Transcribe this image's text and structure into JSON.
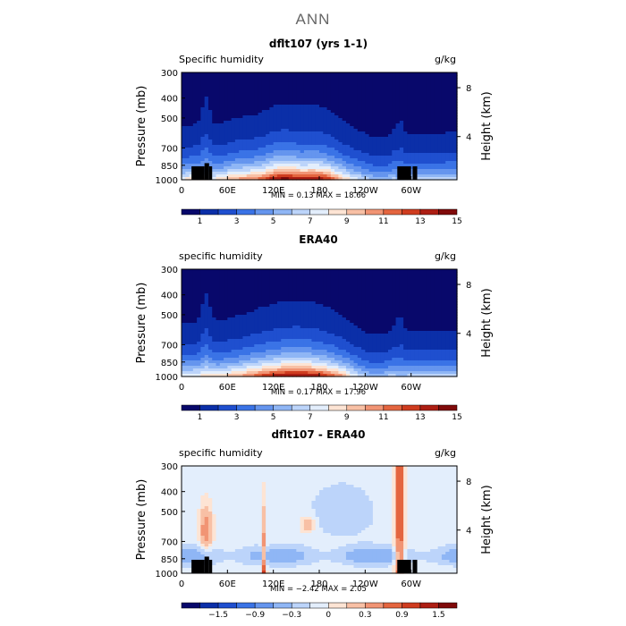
{
  "page": {
    "title": "ANN"
  },
  "colors": {
    "humidity_scale": [
      "#08086b",
      "#0b2fa8",
      "#1f4fcf",
      "#3a73e6",
      "#6595ee",
      "#8fb6f5",
      "#bcd4fa",
      "#e3eefc",
      "#fde4d4",
      "#f8c0a5",
      "#f19474",
      "#e4653f",
      "#cf3c1f",
      "#ad1e13",
      "#800a0a"
    ],
    "diff_scale": [
      "#08086b",
      "#0b2fa8",
      "#1f4fcf",
      "#3a73e6",
      "#6595ee",
      "#8fb6f5",
      "#bcd4fa",
      "#e3eefc",
      "#fde4d4",
      "#f8c0a5",
      "#f19474",
      "#e4653f",
      "#cf3c1f",
      "#ad1e13",
      "#800a0a"
    ],
    "land_mask": "#000000"
  },
  "chart_data": [
    {
      "type": "heatmap",
      "title": "dflt107 (yrs 1-1)",
      "field_label": "Specific humidity",
      "units": "g/kg",
      "ylabel": "Pressure (mb)",
      "ylabel_right": "Height (km)",
      "x_ticks": [
        "0",
        "60E",
        "120E",
        "180",
        "120W",
        "60W"
      ],
      "y_ticks": [
        "300",
        "400",
        "500",
        "700",
        "850",
        "1000"
      ],
      "y_right_ticks": [
        "8",
        "4"
      ],
      "xlim": [
        0,
        360
      ],
      "ylim": [
        1000,
        300
      ],
      "stats": "MIN =    0.13   MAX =   18.66",
      "colorbar_labels": [
        "1",
        "3",
        "5",
        "7",
        "9",
        "11",
        "13",
        "15"
      ],
      "value_range": [
        0.13,
        18.66
      ]
    },
    {
      "type": "heatmap",
      "title": "ERA40",
      "field_label": "specific humidity",
      "units": "g/kg",
      "ylabel": "Pressure (mb)",
      "ylabel_right": "Height (km)",
      "x_ticks": [
        "0",
        "60E",
        "120E",
        "180",
        "120W",
        "60W"
      ],
      "y_ticks": [
        "300",
        "400",
        "500",
        "700",
        "850",
        "1000"
      ],
      "y_right_ticks": [
        "8",
        "4"
      ],
      "xlim": [
        0,
        360
      ],
      "ylim": [
        1000,
        300
      ],
      "stats": "MIN =    0.17   MAX =   17.96",
      "colorbar_labels": [
        "1",
        "3",
        "5",
        "7",
        "9",
        "11",
        "13",
        "15"
      ],
      "value_range": [
        0.17,
        17.96
      ]
    },
    {
      "type": "heatmap",
      "title": "dflt107 - ERA40",
      "field_label": "specific humidity",
      "units": "g/kg",
      "ylabel": "Pressure (mb)",
      "ylabel_right": "Height (km)",
      "x_ticks": [
        "0",
        "60E",
        "120E",
        "180",
        "120W",
        "60W"
      ],
      "y_ticks": [
        "300",
        "400",
        "500",
        "700",
        "850",
        "1000"
      ],
      "y_right_ticks": [
        "8",
        "4"
      ],
      "xlim": [
        0,
        360
      ],
      "ylim": [
        1000,
        300
      ],
      "stats": "MIN =  −2.42   MAX =    2.05",
      "colorbar_labels": [
        "−1.5",
        "−0.9",
        "−0.3",
        "0",
        "0.3",
        "0.9",
        "1.5"
      ],
      "value_range": [
        -2.42,
        2.05
      ]
    }
  ]
}
